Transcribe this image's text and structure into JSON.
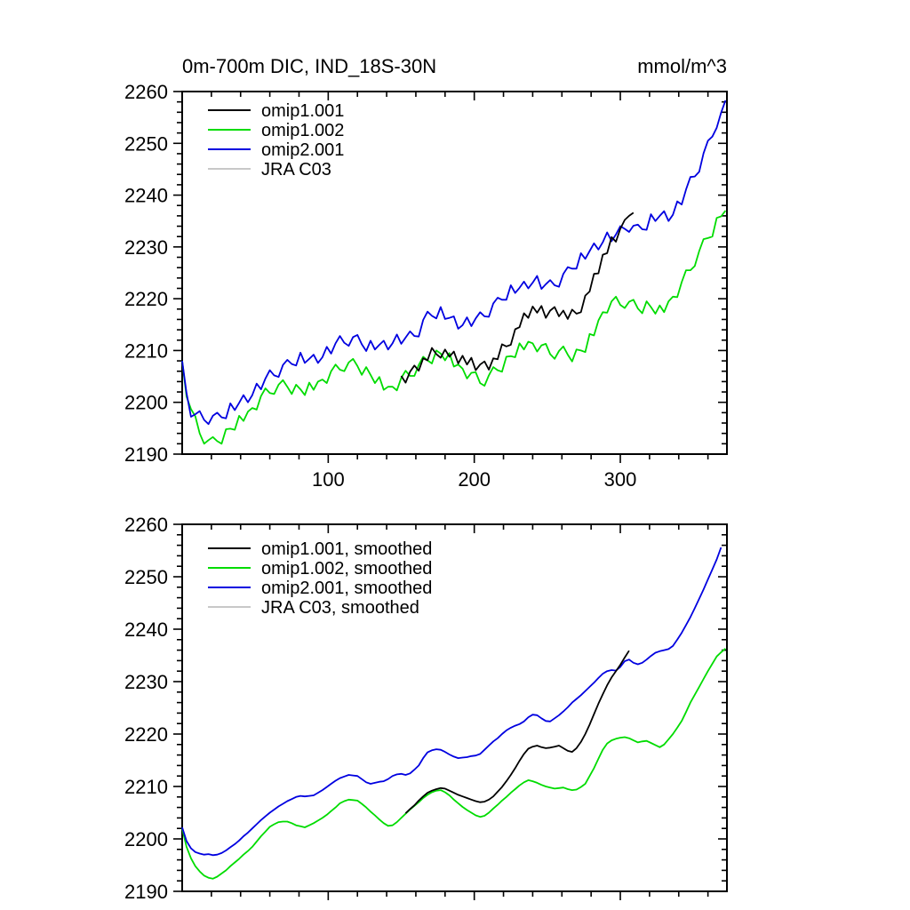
{
  "figure": {
    "background": "#ffffff",
    "axis_color": "#000000",
    "text_color": "#000000"
  },
  "chart_data": [
    {
      "type": "line",
      "title": "0m-700m DIC, IND_18S-30N",
      "units_label": "mmol/m^3",
      "xlabel": "",
      "ylabel": "",
      "xlim": [
        0,
        373
      ],
      "ylim": [
        2190,
        2260
      ],
      "x_axis": {
        "major_ticks": [
          100,
          200,
          300
        ],
        "minor_step": 20,
        "labels_visible": true
      },
      "y_axis": {
        "major_step": 10,
        "minor_step": 2,
        "labels_visible": true
      },
      "grid": false,
      "legend_position": "inside-top-left",
      "series": [
        {
          "name": "omip1.001",
          "color": "#000000",
          "x_start": 150,
          "x_step": 3,
          "values": [
            2205.1,
            2203.8,
            2205.9,
            2207.1,
            2206.1,
            2208.5,
            2208.1,
            2210.5,
            2209.3,
            2208.6,
            2210.2,
            2208.8,
            2209.8,
            2207.5,
            2209.0,
            2207.3,
            2208.6,
            2206.2,
            2207.3,
            2207.9,
            2206.3,
            2208.5,
            2208.3,
            2211.2,
            2210.8,
            2211.1,
            2214.1,
            2214.5,
            2217.2,
            2216.3,
            2218.5,
            2217.3,
            2218.6,
            2216.3,
            2217.7,
            2218.4,
            2216.6,
            2217.7,
            2216.1,
            2217.9,
            2217.1,
            2217.4,
            2220.6,
            2221.4,
            2224.8,
            2224.9,
            2228.5,
            2228.8,
            2231.9,
            2231.0,
            2233.5,
            2235.2,
            2236.0,
            2236.6
          ]
        },
        {
          "name": "omip1.002",
          "color": "#00dc00",
          "x_start": 0,
          "x_step": 3,
          "values": [
            2208.0,
            2201.1,
            2198.7,
            2197.3,
            2194.0,
            2192.0,
            2192.7,
            2193.3,
            2192.5,
            2192.0,
            2194.8,
            2194.9,
            2194.7,
            2197.4,
            2196.4,
            2198.2,
            2198.9,
            2198.6,
            2201.2,
            2202.7,
            2201.8,
            2201.6,
            2203.4,
            2204.3,
            2203.0,
            2201.6,
            2203.4,
            2202.5,
            2201.4,
            2203.8,
            2202.4,
            2204.0,
            2204.4,
            2203.7,
            2206.0,
            2207.3,
            2206.3,
            2206.0,
            2207.7,
            2208.4,
            2207.0,
            2205.3,
            2206.8,
            2205.3,
            2203.7,
            2204.9,
            2202.4,
            2203.0,
            2203.0,
            2202.3,
            2204.7,
            2206.1,
            2205.1,
            2205.1,
            2207.2,
            2208.8,
            2208.1,
            2207.5,
            2210.0,
            2209.4,
            2208.1,
            2209.5,
            2206.9,
            2207.3,
            2206.5,
            2204.6,
            2205.7,
            2205.8,
            2203.7,
            2203.2,
            2205.2,
            2206.8,
            2206.2,
            2205.9,
            2208.8,
            2208.9,
            2208.7,
            2211.4,
            2210.2,
            2211.7,
            2211.4,
            2209.8,
            2211.0,
            2211.3,
            2209.3,
            2208.4,
            2209.9,
            2210.8,
            2209.2,
            2207.9,
            2210.2,
            2210.0,
            2209.7,
            2213.2,
            2212.9,
            2215.8,
            2217.4,
            2217.3,
            2219.5,
            2220.4,
            2218.8,
            2218.2,
            2219.4,
            2219.8,
            2218.1,
            2217.2,
            2219.5,
            2218.4,
            2217.1,
            2218.7,
            2217.4,
            2219.5,
            2220.4,
            2220.3,
            2223.2,
            2225.5,
            2225.5,
            2226.3,
            2229.2,
            2231.5,
            2231.7,
            2232.0,
            2235.6,
            2235.9,
            2237.0
          ]
        },
        {
          "name": "omip2.001",
          "color": "#0000e0",
          "x_start": 0,
          "x_step": 3,
          "values": [
            2208.0,
            2201.8,
            2197.2,
            2197.7,
            2198.3,
            2196.6,
            2195.8,
            2197.4,
            2198.0,
            2197.1,
            2196.9,
            2199.8,
            2198.5,
            2199.9,
            2201.4,
            2200.0,
            2201.4,
            2203.6,
            2202.5,
            2204.6,
            2206.2,
            2205.2,
            2204.9,
            2207.2,
            2208.2,
            2207.4,
            2207.1,
            2209.6,
            2207.6,
            2208.4,
            2209.2,
            2207.6,
            2208.7,
            2210.7,
            2209.4,
            2211.4,
            2212.8,
            2211.5,
            2210.9,
            2212.6,
            2213.0,
            2211.2,
            2209.9,
            2211.9,
            2210.2,
            2211.1,
            2211.9,
            2210.2,
            2211.4,
            2213.1,
            2211.3,
            2212.5,
            2213.7,
            2212.8,
            2212.7,
            2215.9,
            2217.5,
            2216.7,
            2216.2,
            2218.4,
            2216.1,
            2216.3,
            2216.6,
            2214.2,
            2214.9,
            2216.4,
            2214.7,
            2216.2,
            2217.4,
            2216.6,
            2216.5,
            2219.1,
            2220.2,
            2219.8,
            2219.8,
            2222.6,
            2221.1,
            2222.1,
            2223.3,
            2222.0,
            2223.1,
            2224.4,
            2221.9,
            2222.8,
            2223.6,
            2222.6,
            2222.3,
            2224.8,
            2226.1,
            2225.8,
            2225.8,
            2228.8,
            2227.7,
            2229.2,
            2230.7,
            2229.5,
            2230.9,
            2232.8,
            2231.1,
            2232.4,
            2234.0,
            2233.5,
            2232.9,
            2234.1,
            2234.3,
            2233.4,
            2233.3,
            2236.3,
            2235.0,
            2236.0,
            2236.9,
            2235.0,
            2236.2,
            2238.8,
            2238.2,
            2241.1,
            2243.5,
            2243.6,
            2244.5,
            2248.1,
            2250.5,
            2251.3,
            2253.0,
            2255.9,
            2258.3
          ]
        },
        {
          "name": "JRA C03",
          "color": "#c8c8c8",
          "x_start": 0,
          "x_step": 3,
          "values": []
        }
      ]
    },
    {
      "type": "line",
      "title": "",
      "units_label": "",
      "xlabel": "",
      "ylabel": "",
      "xlim": [
        0,
        373
      ],
      "ylim": [
        2190,
        2260
      ],
      "x_axis": {
        "major_ticks": [
          100,
          200,
          300
        ],
        "minor_step": 20,
        "labels_visible": false
      },
      "y_axis": {
        "major_step": 10,
        "minor_step": 2,
        "labels_visible": true
      },
      "grid": false,
      "legend_position": "inside-top-left",
      "series": [
        {
          "name": "omip1.001, smoothed",
          "color": "#000000",
          "x_start": 153,
          "x_step": 3,
          "values": [
            2204.9,
            2205.7,
            2206.4,
            2207.3,
            2208.1,
            2208.8,
            2209.2,
            2209.5,
            2209.7,
            2209.6,
            2209.2,
            2208.8,
            2208.4,
            2208.1,
            2207.8,
            2207.5,
            2207.2,
            2207.0,
            2207.1,
            2207.5,
            2208.1,
            2209.0,
            2209.9,
            2211.0,
            2212.2,
            2213.5,
            2214.9,
            2216.2,
            2217.2,
            2217.6,
            2217.8,
            2217.5,
            2217.3,
            2217.4,
            2217.6,
            2217.8,
            2217.3,
            2216.8,
            2216.6,
            2217.3,
            2218.5,
            2220.0,
            2221.8,
            2223.8,
            2225.8,
            2227.6,
            2229.3,
            2230.8,
            2232.0,
            2233.2,
            2234.6,
            2235.9
          ]
        },
        {
          "name": "omip1.002, smoothed",
          "color": "#00dc00",
          "x_start": 0,
          "x_step": 3,
          "values": [
            2202.0,
            2198.5,
            2196.3,
            2194.8,
            2193.8,
            2193.0,
            2192.6,
            2192.4,
            2192.8,
            2193.4,
            2194.0,
            2194.8,
            2195.5,
            2196.2,
            2197.0,
            2197.7,
            2198.5,
            2199.5,
            2200.5,
            2201.4,
            2202.3,
            2202.8,
            2203.2,
            2203.3,
            2203.3,
            2203.0,
            2202.6,
            2202.4,
            2202.2,
            2202.6,
            2203.0,
            2203.5,
            2204.0,
            2204.6,
            2205.3,
            2206.0,
            2206.8,
            2207.2,
            2207.5,
            2207.4,
            2207.3,
            2206.7,
            2206.0,
            2205.2,
            2204.5,
            2203.7,
            2203.0,
            2202.5,
            2202.6,
            2203.2,
            2204.0,
            2204.8,
            2205.6,
            2206.3,
            2207.0,
            2207.8,
            2208.4,
            2208.9,
            2209.2,
            2209.3,
            2208.9,
            2208.3,
            2207.5,
            2206.8,
            2206.1,
            2205.5,
            2205.0,
            2204.5,
            2204.2,
            2204.4,
            2205.0,
            2205.8,
            2206.5,
            2207.3,
            2208.0,
            2208.8,
            2209.5,
            2210.2,
            2210.8,
            2211.2,
            2211.0,
            2210.7,
            2210.3,
            2210.0,
            2209.8,
            2209.6,
            2209.7,
            2209.8,
            2209.5,
            2209.3,
            2209.4,
            2209.9,
            2210.5,
            2212.0,
            2213.5,
            2215.3,
            2217.0,
            2218.2,
            2218.8,
            2219.1,
            2219.3,
            2219.4,
            2219.2,
            2218.8,
            2218.4,
            2218.6,
            2218.7,
            2218.3,
            2217.9,
            2217.5,
            2218.0,
            2219.0,
            2220.0,
            2221.2,
            2222.5,
            2224.2,
            2226.0,
            2227.5,
            2229.0,
            2230.5,
            2232.0,
            2233.4,
            2234.8,
            2235.6,
            2236.3
          ]
        },
        {
          "name": "omip2.001, smoothed",
          "color": "#0000e0",
          "x_start": 0,
          "x_step": 3,
          "values": [
            2202.2,
            2199.6,
            2198.2,
            2197.5,
            2197.2,
            2197.0,
            2197.1,
            2196.9,
            2197.0,
            2197.3,
            2197.8,
            2198.4,
            2199.0,
            2199.7,
            2200.5,
            2201.2,
            2202.0,
            2202.8,
            2203.6,
            2204.3,
            2205.0,
            2205.6,
            2206.2,
            2206.7,
            2207.2,
            2207.6,
            2208.0,
            2208.2,
            2208.1,
            2208.2,
            2208.3,
            2208.8,
            2209.3,
            2209.9,
            2210.5,
            2211.1,
            2211.6,
            2211.9,
            2212.2,
            2212.1,
            2212.0,
            2211.4,
            2210.8,
            2210.5,
            2210.7,
            2210.9,
            2211.0,
            2211.4,
            2212.0,
            2212.3,
            2212.4,
            2212.2,
            2212.5,
            2213.2,
            2214.0,
            2215.4,
            2216.5,
            2216.9,
            2217.1,
            2217.0,
            2216.6,
            2216.1,
            2215.7,
            2215.4,
            2215.5,
            2215.6,
            2215.8,
            2215.9,
            2216.2,
            2217.0,
            2217.8,
            2218.6,
            2219.2,
            2220.0,
            2220.7,
            2221.2,
            2221.6,
            2221.9,
            2222.4,
            2223.2,
            2223.7,
            2223.6,
            2223.0,
            2222.5,
            2222.4,
            2223.0,
            2223.6,
            2224.3,
            2225.1,
            2226.0,
            2226.7,
            2227.4,
            2228.2,
            2229.0,
            2229.8,
            2230.7,
            2231.5,
            2232.0,
            2232.2,
            2232.1,
            2232.8,
            2233.9,
            2234.2,
            2233.6,
            2233.3,
            2233.6,
            2234.2,
            2234.9,
            2235.5,
            2235.8,
            2236.0,
            2236.2,
            2236.8,
            2238.0,
            2239.3,
            2240.8,
            2242.3,
            2244.0,
            2245.8,
            2247.6,
            2249.5,
            2251.4,
            2253.3,
            2255.6
          ]
        },
        {
          "name": "JRA C03, smoothed",
          "color": "#c8c8c8",
          "x_start": 0,
          "x_step": 3,
          "values": []
        }
      ]
    }
  ]
}
